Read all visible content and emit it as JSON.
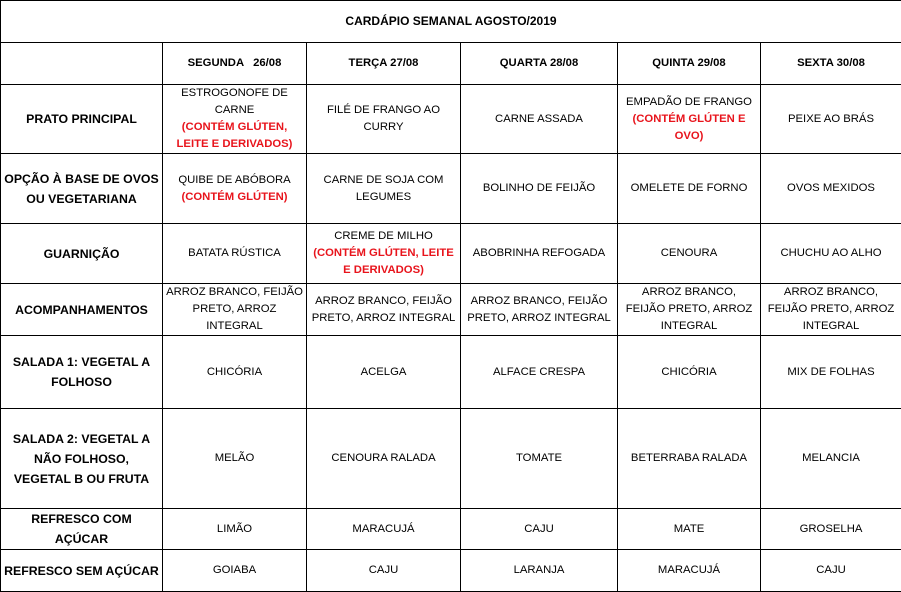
{
  "title": "CARDÁPIO SEMANAL AGOSTO/2019",
  "days": [
    "SEGUNDA   26/08",
    "TERÇA 27/08",
    "QUARTA 28/08",
    "QUINTA 29/08",
    "SEXTA 30/08"
  ],
  "allergen_color": "#e8141c",
  "rows": [
    {
      "label": "PRATO PRINCIPAL",
      "cells": [
        {
          "text": "ESTROGONOFE DE CARNE",
          "allergen": "(CONTÉM GLÚTEN, LEITE E DERIVADOS)"
        },
        {
          "text": "FILÉ DE FRANGO AO CURRY"
        },
        {
          "text": "CARNE ASSADA"
        },
        {
          "text": "EMPADÃO DE FRANGO",
          "allergen": "(CONTÉM GLÚTEN E OVO)"
        },
        {
          "text": "PEIXE AO BRÁS"
        }
      ]
    },
    {
      "label": "OPÇÃO À BASE DE OVOS OU VEGETARIANA",
      "cells": [
        {
          "text": "QUIBE DE ABÓBORA",
          "allergen": "(CONTÉM GLÚTEN)"
        },
        {
          "text": "CARNE DE SOJA COM LEGUMES"
        },
        {
          "text": "BOLINHO DE FEIJÃO"
        },
        {
          "text": "OMELETE DE FORNO"
        },
        {
          "text": "OVOS MEXIDOS"
        }
      ]
    },
    {
      "label": "GUARNIÇÃO",
      "cells": [
        {
          "text": "BATATA RÚSTICA"
        },
        {
          "text": "CREME DE MILHO",
          "allergen": "(CONTÉM GLÚTEN, LEITE E DERIVADOS)"
        },
        {
          "text": "ABOBRINHA REFOGADA"
        },
        {
          "text": "CENOURA"
        },
        {
          "text": "CHUCHU AO ALHO"
        }
      ]
    },
    {
      "label": "ACOMPANHAMENTOS",
      "cells": [
        {
          "text": "ARROZ BRANCO, FEIJÃO PRETO, ARROZ INTEGRAL"
        },
        {
          "text": "ARROZ BRANCO, FEIJÃO PRETO, ARROZ INTEGRAL"
        },
        {
          "text": "ARROZ BRANCO, FEIJÃO PRETO, ARROZ INTEGRAL"
        },
        {
          "text": "ARROZ BRANCO, FEIJÃO PRETO, ARROZ INTEGRAL"
        },
        {
          "text": "ARROZ BRANCO, FEIJÃO PRETO, ARROZ INTEGRAL"
        }
      ]
    },
    {
      "label": "SALADA 1: VEGETAL A FOLHOSO",
      "cells": [
        {
          "text": "CHICÓRIA"
        },
        {
          "text": "ACELGA"
        },
        {
          "text": "ALFACE CRESPA"
        },
        {
          "text": "CHICÓRIA"
        },
        {
          "text": "MIX DE FOLHAS"
        }
      ]
    },
    {
      "label": "SALADA 2: VEGETAL A NÃO FOLHOSO, VEGETAL B OU FRUTA",
      "cells": [
        {
          "text": "MELÃO"
        },
        {
          "text": "CENOURA RALADA"
        },
        {
          "text": "TOMATE"
        },
        {
          "text": "BETERRABA RALADA"
        },
        {
          "text": "MELANCIA"
        }
      ]
    },
    {
      "label": "REFRESCO COM AÇÚCAR",
      "cells": [
        {
          "text": "LIMÃO"
        },
        {
          "text": "MARACUJÁ"
        },
        {
          "text": "CAJU"
        },
        {
          "text": "MATE"
        },
        {
          "text": "GROSELHA"
        }
      ]
    },
    {
      "label": "REFRESCO SEM AÇÚCAR",
      "cells": [
        {
          "text": "GOIABA"
        },
        {
          "text": "CAJU"
        },
        {
          "text": "LARANJA"
        },
        {
          "text": "MARACUJÁ"
        },
        {
          "text": "CAJU"
        }
      ]
    }
  ]
}
